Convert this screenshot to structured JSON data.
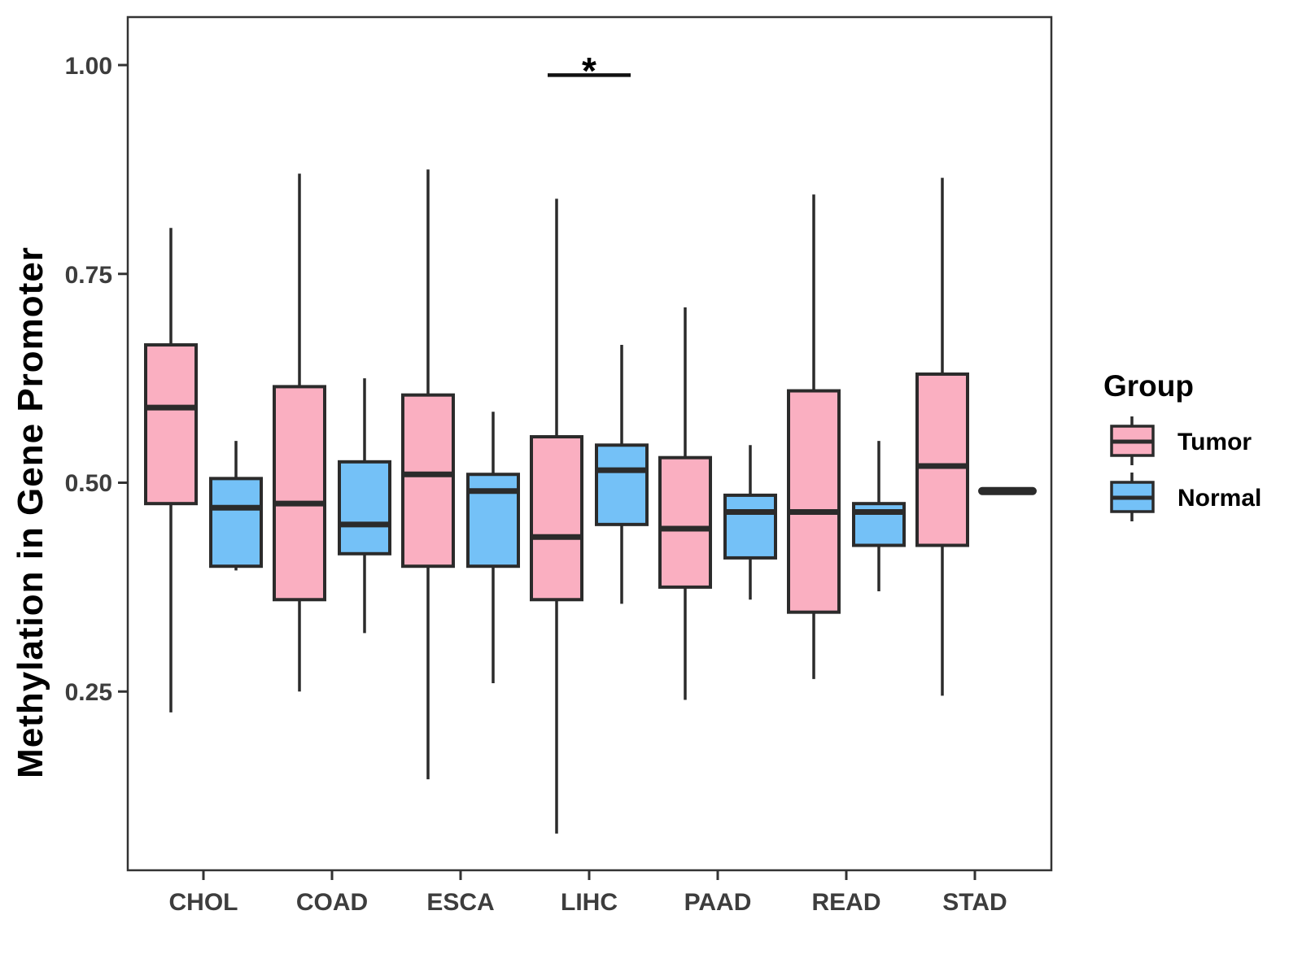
{
  "chart_data": {
    "type": "boxplot",
    "title": "",
    "xlabel": "",
    "ylabel": "Methylation in Gene Promoter",
    "categories": [
      "CHOL",
      "COAD",
      "ESCA",
      "LIHC",
      "PAAD",
      "READ",
      "STAD"
    ],
    "y_ticks": [
      {
        "label": "1.00",
        "value": 1.0
      },
      {
        "label": "0.75",
        "value": 0.75
      },
      {
        "label": "0.50",
        "value": 0.5
      },
      {
        "label": "0.25",
        "value": 0.25
      }
    ],
    "ylim": [
      0.04,
      1.06
    ],
    "grid": "off",
    "legend": {
      "title": "Group",
      "position": "right",
      "entries": [
        {
          "label": "Tumor",
          "color": "#FAAFC1"
        },
        {
          "label": "Normal",
          "color": "#74C1F7"
        }
      ]
    },
    "colors": {
      "box_stroke": "#2B2B2B",
      "panel_border": "#333333",
      "axis_tick": "#333333",
      "axis_text": "#3d3d3d",
      "annotation": "#111111"
    },
    "series": [
      {
        "name": "Tumor",
        "color": "#FAAFC1",
        "boxes": [
          {
            "category": "CHOL",
            "whisker_low": 0.225,
            "q1": 0.475,
            "median": 0.59,
            "q3": 0.665,
            "whisker_high": 0.805
          },
          {
            "category": "COAD",
            "whisker_low": 0.25,
            "q1": 0.36,
            "median": 0.475,
            "q3": 0.615,
            "whisker_high": 0.87
          },
          {
            "category": "ESCA",
            "whisker_low": 0.145,
            "q1": 0.4,
            "median": 0.51,
            "q3": 0.605,
            "whisker_high": 0.875
          },
          {
            "category": "LIHC",
            "whisker_low": 0.08,
            "q1": 0.36,
            "median": 0.435,
            "q3": 0.555,
            "whisker_high": 0.84
          },
          {
            "category": "PAAD",
            "whisker_low": 0.24,
            "q1": 0.375,
            "median": 0.445,
            "q3": 0.53,
            "whisker_high": 0.71
          },
          {
            "category": "READ",
            "whisker_low": 0.265,
            "q1": 0.345,
            "median": 0.465,
            "q3": 0.61,
            "whisker_high": 0.845
          },
          {
            "category": "STAD",
            "whisker_low": 0.245,
            "q1": 0.425,
            "median": 0.52,
            "q3": 0.63,
            "whisker_high": 0.865
          }
        ]
      },
      {
        "name": "Normal",
        "color": "#74C1F7",
        "boxes": [
          {
            "category": "CHOL",
            "whisker_low": 0.395,
            "q1": 0.4,
            "median": 0.47,
            "q3": 0.505,
            "whisker_high": 0.55
          },
          {
            "category": "COAD",
            "whisker_low": 0.32,
            "q1": 0.415,
            "median": 0.45,
            "q3": 0.525,
            "whisker_high": 0.625
          },
          {
            "category": "ESCA",
            "whisker_low": 0.26,
            "q1": 0.4,
            "median": 0.49,
            "q3": 0.51,
            "whisker_high": 0.585
          },
          {
            "category": "LIHC",
            "whisker_low": 0.355,
            "q1": 0.45,
            "median": 0.515,
            "q3": 0.545,
            "whisker_high": 0.665
          },
          {
            "category": "PAAD",
            "whisker_low": 0.36,
            "q1": 0.41,
            "median": 0.465,
            "q3": 0.485,
            "whisker_high": 0.545
          },
          {
            "category": "READ",
            "whisker_low": 0.37,
            "q1": 0.425,
            "median": 0.465,
            "q3": 0.475,
            "whisker_high": 0.55
          },
          {
            "category": "STAD",
            "whisker_low": 0.49,
            "q1": 0.49,
            "median": 0.49,
            "q3": 0.49,
            "whisker_high": 0.49
          }
        ]
      }
    ],
    "annotations": [
      {
        "type": "significance",
        "label": "*",
        "category": "LIHC",
        "between": [
          "Tumor",
          "Normal"
        ],
        "bar_y": 0.988,
        "label_y": 1.01
      }
    ]
  }
}
